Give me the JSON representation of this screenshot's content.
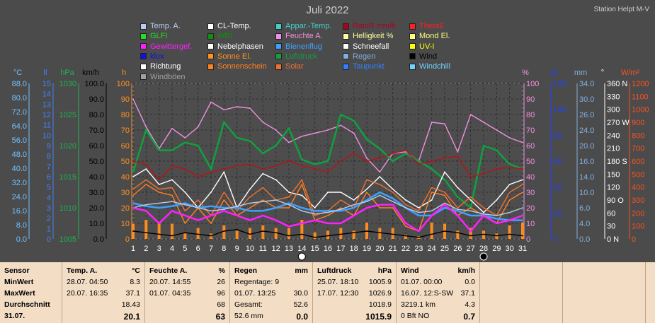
{
  "title": "Juli 2022",
  "station": "Station Helpt M-V",
  "legend": [
    {
      "label": "Temp. A.",
      "color": "#b8cdf0"
    },
    {
      "label": "CL-Temp.",
      "color": "#ffffff"
    },
    {
      "label": "Appar.-Temp.",
      "color": "#40d0c8"
    },
    {
      "label": "RainR mm/h",
      "color": "#b00020"
    },
    {
      "label": "ThetaE",
      "color": "#ff2020"
    },
    {
      "label": "GLFI",
      "color": "#20e020"
    },
    {
      "label": "WBI",
      "color": "#109010"
    },
    {
      "label": "Feuchte A.",
      "color": "#f090e0"
    },
    {
      "label": "Helligkeit %",
      "color": "#ffffa0"
    },
    {
      "label": "Mond El.",
      "color": "#ffff80"
    },
    {
      "label": "Gewittergef.",
      "color": "#ff20ff"
    },
    {
      "label": "Nebelphasen",
      "color": "#ffffff"
    },
    {
      "label": "Bienenflug",
      "color": "#40a0ff"
    },
    {
      "label": "Schneefall",
      "color": "#ffffff"
    },
    {
      "label": "UV-I",
      "color": "#ffff00"
    },
    {
      "label": "klux",
      "color": "#1010e0"
    },
    {
      "label": "Sonne El.",
      "color": "#ff9020"
    },
    {
      "label": "Luftdruck",
      "color": "#10a040"
    },
    {
      "label": "Regen",
      "color": "#80b0e0"
    },
    {
      "label": "Wind",
      "color": "#000000"
    },
    {
      "label": "Richtung",
      "color": "#ffffff"
    },
    {
      "label": "Sonnenschein",
      "color": "#ff8020"
    },
    {
      "label": "Solar",
      "color": "#f07030"
    },
    {
      "label": "Taupunkt",
      "color": "#3080ff"
    },
    {
      "label": "Windchill",
      "color": "#70d0ff"
    },
    {
      "label": "Windböen",
      "color": "#a0a0a0"
    }
  ],
  "axes": {
    "temp": {
      "unit": "°C",
      "color": "#70c0ff",
      "ticks": [
        "88.0",
        "80.0",
        "72.0",
        "64.0",
        "56.0",
        "48.0",
        "40.0",
        "32.0",
        "24.0",
        "16.0",
        "8.0",
        "0.0"
      ]
    },
    "ll": {
      "unit": "ll",
      "color": "#4080ff",
      "ticks": [
        "15",
        "14",
        "13",
        "12",
        "11",
        "10",
        "9",
        "8",
        "7",
        "6",
        "5",
        "4",
        "3",
        "2",
        "1",
        "0"
      ]
    },
    "hpa": {
      "unit": "hPa",
      "color": "#20b050",
      "ticks": [
        "1030",
        "1025",
        "1020",
        "1015",
        "1010",
        "1005"
      ]
    },
    "kmh": {
      "unit": "km/h",
      "color": "#000000",
      "ticks": [
        "100.0",
        "90.0",
        "80.0",
        "70.0",
        "60.0",
        "50.0",
        "40.0",
        "30.0",
        "20.0",
        "10.0",
        "0.0"
      ]
    },
    "h": {
      "unit": "h",
      "color": "#ff9020",
      "ticks": [
        "100",
        "90",
        "80",
        "70",
        "60",
        "50",
        "40",
        "30",
        "20",
        "10",
        "0"
      ]
    },
    "pct": {
      "unit": "%",
      "color": "#f090e0",
      "ticks": [
        "100",
        "90",
        "80",
        "70",
        "60",
        "50",
        "40",
        "30",
        "20",
        "10",
        "0"
      ]
    },
    "cb": {
      "unit": "cb",
      "color": "#2040ff",
      "ticks": [
        "120",
        "100",
        "80",
        "60",
        "40",
        "20",
        "0"
      ]
    },
    "mm": {
      "unit": "mm",
      "color": "#80b0e0",
      "ticks": [
        "34.0",
        "30.0",
        "26.0",
        "24.0",
        "20.0",
        "16.0",
        "14.0",
        "10.0",
        "6.0",
        "4.0",
        "0.0"
      ]
    },
    "deg": {
      "unit": "°",
      "color": "#ffffff",
      "ticks": [
        "360 N",
        "330",
        "300",
        "270 W",
        "240",
        "210",
        "180 S",
        "150",
        "120",
        "90 O",
        "60",
        "30",
        "0 N"
      ]
    },
    "wm2": {
      "unit": "W/m²",
      "color": "#ff5020",
      "ticks": [
        "1200",
        "1100",
        "1000",
        "900",
        "800",
        "700",
        "600",
        "500",
        "400",
        "300",
        "200",
        "100",
        "0"
      ]
    }
  },
  "days": [
    "1",
    "2",
    "3",
    "4",
    "5",
    "6",
    "7",
    "8",
    "9",
    "10",
    "11",
    "12",
    "13",
    "14",
    "15",
    "16",
    "17",
    "18",
    "19",
    "20",
    "21",
    "22",
    "23",
    "24",
    "25",
    "26",
    "27",
    "28",
    "29",
    "30",
    "31"
  ],
  "chart_data": {
    "type": "line",
    "title": "Juli 2022",
    "x": [
      1,
      2,
      3,
      4,
      5,
      6,
      7,
      8,
      9,
      10,
      11,
      12,
      13,
      14,
      15,
      16,
      17,
      18,
      19,
      20,
      21,
      22,
      23,
      24,
      25,
      26,
      27,
      28,
      29,
      30,
      31
    ],
    "ylim": [
      0,
      100
    ],
    "series": [
      {
        "name": "Feuchte A.",
        "color": "#f090e0",
        "values": [
          90,
          72,
          58,
          71,
          65,
          72,
          88,
          83,
          85,
          84,
          75,
          70,
          62,
          66,
          68,
          70,
          73,
          68,
          52,
          43,
          55,
          56,
          50,
          75,
          74,
          56,
          80,
          75,
          70,
          65,
          62
        ]
      },
      {
        "name": "Luftdruck",
        "color": "#10a040",
        "values": [
          43,
          70,
          57,
          57,
          62,
          60,
          45,
          75,
          65,
          63,
          55,
          60,
          71,
          51,
          48,
          50,
          80,
          76,
          64,
          58,
          50,
          55,
          50,
          45,
          38,
          27,
          20,
          60,
          57,
          48,
          45
        ]
      },
      {
        "name": "ThetaE",
        "color": "#c01010",
        "values": [
          50,
          48,
          38,
          47,
          45,
          40,
          43,
          45,
          47,
          48,
          45,
          47,
          50,
          47,
          45,
          43,
          50,
          55,
          50,
          52,
          55,
          57,
          48,
          50,
          52,
          53,
          40,
          42,
          45,
          46,
          45
        ]
      },
      {
        "name": "CL-Temp.",
        "color": "#ffffff",
        "values": [
          40,
          45,
          35,
          38,
          30,
          20,
          30,
          43,
          20,
          32,
          42,
          38,
          30,
          28,
          20,
          30,
          30,
          25,
          32,
          40,
          32,
          25,
          20,
          25,
          43,
          33,
          25,
          17,
          25,
          35,
          38
        ]
      },
      {
        "name": "Sonnenschein",
        "color": "#ff8020",
        "values": [
          28,
          35,
          30,
          28,
          10,
          20,
          10,
          25,
          15,
          20,
          25,
          20,
          20,
          35,
          12,
          15,
          20,
          15,
          30,
          20,
          20,
          8,
          5,
          30,
          28,
          15,
          20,
          15,
          10,
          25,
          30
        ]
      },
      {
        "name": "Solar",
        "color": "#f07030",
        "values": [
          32,
          38,
          32,
          33,
          18,
          25,
          15,
          30,
          18,
          27,
          33,
          25,
          27,
          38,
          15,
          18,
          25,
          20,
          38,
          35,
          30,
          22,
          18,
          33,
          30,
          20,
          27,
          20,
          15,
          30,
          35
        ]
      },
      {
        "name": "Taupunkt",
        "color": "#40a0ff",
        "values": [
          23,
          21,
          20,
          21,
          23,
          20,
          21,
          20,
          20,
          18,
          18,
          20,
          23,
          20,
          18,
          18,
          18,
          20,
          25,
          30,
          26,
          20,
          15,
          15,
          20,
          18,
          15,
          15,
          13,
          12,
          12
        ]
      },
      {
        "name": "Temp. A.",
        "color": "#b8cdf0",
        "values": [
          20,
          22,
          23,
          24,
          22,
          20,
          18,
          19,
          21,
          23,
          24,
          25,
          22,
          18,
          16,
          17,
          19,
          22,
          24,
          28,
          24,
          20,
          17,
          18,
          23,
          19,
          18,
          16,
          15,
          17,
          20
        ]
      },
      {
        "name": "Gewittergef.",
        "color": "#ff20ff",
        "values": [
          20,
          18,
          10,
          18,
          15,
          12,
          15,
          18,
          15,
          12,
          15,
          12,
          8,
          10,
          12,
          10,
          10,
          15,
          20,
          22,
          22,
          10,
          5,
          15,
          22,
          15,
          5,
          15,
          10,
          12,
          15
        ]
      },
      {
        "name": "Wind",
        "color": "#000000",
        "values": [
          5,
          4,
          3,
          2,
          4,
          3,
          2,
          5,
          6,
          3,
          5,
          4,
          2,
          3,
          1,
          2,
          3,
          4,
          5,
          4,
          3,
          2,
          1,
          3,
          5,
          4,
          2,
          3,
          2,
          3,
          2
        ]
      }
    ],
    "legend_position": "top"
  },
  "table": {
    "sensor": {
      "header": "Sensor",
      "rows": [
        "MinWert",
        "MaxWert",
        "Durchschnitt",
        "31.07."
      ]
    },
    "temp": {
      "header": "Temp. A.",
      "unit": "°C",
      "rows": [
        [
          "28.07.  04:50",
          "8.3"
        ],
        [
          "20.07.  16:35",
          "37.1"
        ],
        [
          "",
          "18.43"
        ],
        [
          "",
          "20.1"
        ]
      ]
    },
    "feuchte": {
      "header": "Feuchte A.",
      "unit": "%",
      "rows": [
        [
          "20.07.  14:55",
          "26"
        ],
        [
          "01.07.  04:35",
          "96"
        ],
        [
          "",
          "68"
        ],
        [
          "",
          "63"
        ]
      ]
    },
    "regen": {
      "header": "Regen",
      "unit": "mm",
      "rows": [
        [
          "Regentage: 9",
          ""
        ],
        [
          "01.07.  13:25",
          "30.0"
        ],
        [
          "Gesamt:",
          "52.6"
        ],
        [
          "52.6 mm",
          "0.0"
        ]
      ]
    },
    "luftdruck": {
      "header": "Luftdruck",
      "unit": "hPa",
      "rows": [
        [
          "25.07.  18:10",
          "1005.9"
        ],
        [
          "17.07.  12:30",
          "1026.9"
        ],
        [
          "",
          "1018.9"
        ],
        [
          "",
          "1015.9"
        ]
      ]
    },
    "wind": {
      "header": "Wind",
      "unit": "km/h",
      "rows": [
        [
          "01.07.  00:00",
          "0.0"
        ],
        [
          "16.07.  12:S-SW",
          "37.1"
        ],
        [
          "3219.1 km",
          "4.3"
        ],
        [
          "0 Bft NO",
          "0.7"
        ]
      ]
    }
  }
}
